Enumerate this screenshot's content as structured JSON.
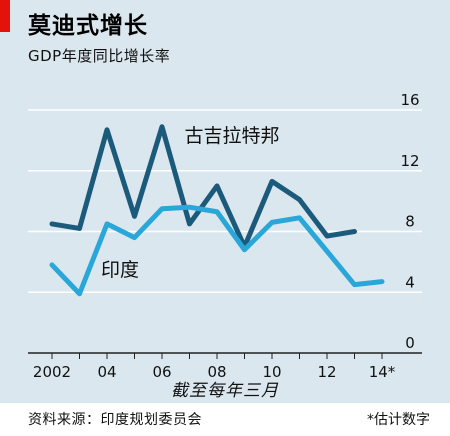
{
  "header": {
    "title": "莫迪式增长",
    "subtitle": "GDP年度同比增长率"
  },
  "footer": {
    "source": "资料来源：印度规划委员会",
    "footnote": "*估计数字"
  },
  "colors": {
    "background": "#dbe7ee",
    "gujarat": "#1c5a7c",
    "india": "#2aa7d9",
    "accent": "#e3120b"
  },
  "chart_data": {
    "type": "line",
    "xlabel": "截至每年三月",
    "ylabel": "",
    "ylim": [
      0,
      16
    ],
    "xlim": [
      2002,
      2014
    ],
    "y_ticks": [
      0,
      4,
      8,
      12,
      16
    ],
    "x_ticks": [
      {
        "value": 2002,
        "label": "2002"
      },
      {
        "value": 2004,
        "label": "04"
      },
      {
        "value": 2006,
        "label": "06"
      },
      {
        "value": 2008,
        "label": "08"
      },
      {
        "value": 2010,
        "label": "10"
      },
      {
        "value": 2012,
        "label": "12"
      },
      {
        "value": 2014,
        "label": "14*"
      }
    ],
    "grid": true,
    "series": [
      {
        "name": "古吉拉特邦",
        "color": "#1c5a7c",
        "x": [
          2002,
          2003,
          2004,
          2005,
          2006,
          2007,
          2008,
          2009,
          2010,
          2011,
          2012,
          2013
        ],
        "y": [
          8.5,
          8.2,
          14.7,
          9.0,
          14.9,
          8.5,
          11.0,
          7.0,
          11.3,
          10.1,
          7.7,
          8.0
        ]
      },
      {
        "name": "印度",
        "color": "#2aa7d9",
        "x": [
          2002,
          2003,
          2004,
          2005,
          2006,
          2007,
          2008,
          2009,
          2010,
          2011,
          2012,
          2013,
          2014
        ],
        "y": [
          5.8,
          3.9,
          8.5,
          7.6,
          9.5,
          9.6,
          9.3,
          6.8,
          8.6,
          8.9,
          6.7,
          4.5,
          4.7
        ]
      }
    ]
  }
}
